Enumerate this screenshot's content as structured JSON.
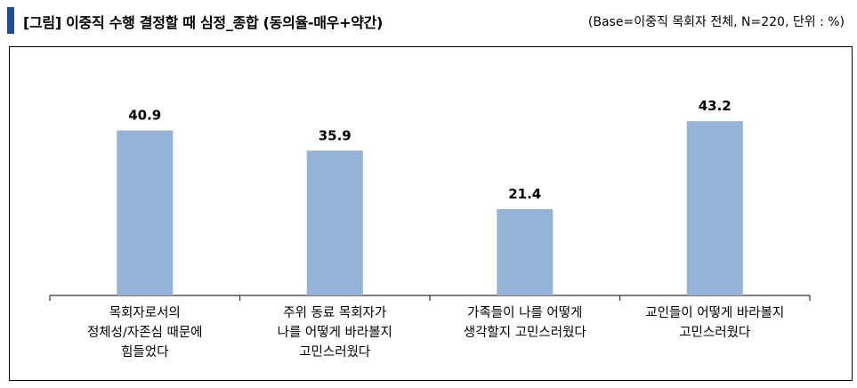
{
  "header": {
    "title": "[그림] 이중직 수행 결정할 때 심정_종합 (동의율-매우+약간)",
    "base_note": "(Base=이중직 목회자 전체, N=220, 단위 : %)"
  },
  "colors": {
    "bar": "#95b3d7",
    "accent": "#1f4e96"
  },
  "chart_data": {
    "type": "bar",
    "title": "[그림] 이중직 수행 결정할 때 심정_종합 (동의율-매우+약간)",
    "xlabel": "",
    "ylabel": "",
    "ylim": [
      0,
      60
    ],
    "grid": false,
    "legend": "none",
    "categories": [
      [
        "목회자로서의",
        "정체성/자존심 때문에",
        "힘들었다"
      ],
      [
        "주위 동료 목회자가",
        "나를 어떻게 바라볼지",
        "고민스러웠다"
      ],
      [
        "가족들이 나를 어떻게",
        "생각할지 고민스러웠다"
      ],
      [
        "교인들이 어떻게 바라볼지",
        "고민스러웠다"
      ]
    ],
    "values": [
      40.9,
      35.9,
      21.4,
      43.2
    ],
    "value_labels": [
      "40.9",
      "35.9",
      "21.4",
      "43.2"
    ]
  }
}
